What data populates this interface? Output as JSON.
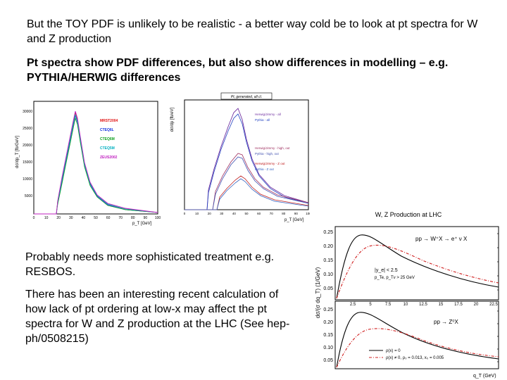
{
  "slide": {
    "para1": "But the TOY PDF is unlikely to be realistic - a better way cold be to look at pt spectra for W and Z production",
    "para2": "Pt spectra show PDF differences, but also show differences in modelling – e.g. PYTHIA/HERWIG differences",
    "box_line1": "Probably needs more sophisticated treatment e.g. RESBOS.",
    "box_line2": "There has been an interesting recent calculation of how lack of pt ordering at low-x may affect the pt spectra for W and Z production at the LHC  (See hep-ph/0508215)"
  },
  "figure1": {
    "ylabel": "dσ/dp_T [fb/GeV]",
    "xlabel": "p_T [GeV]",
    "yticks": [
      "30000",
      "25000",
      "20000",
      "15000",
      "10000",
      "5000"
    ],
    "xticks": [
      "0",
      "10",
      "20",
      "30",
      "40",
      "50",
      "60",
      "70",
      "80",
      "90",
      "100"
    ],
    "legend": [
      "MRST2004",
      "CTEQ6L",
      "CTEQ6M",
      "CTEQ5M",
      "ZEUS2002"
    ],
    "colors": [
      "#e01010",
      "#1030e0",
      "#10a020",
      "#00b0c0",
      "#c020c0"
    ]
  },
  "figure2": {
    "title": "Pt, generated, all cl.",
    "ylabel": "dσ/dp [fb/eV]",
    "xlabel": "p_T [GeV]",
    "xticks": [
      "0",
      "10",
      "20",
      "30",
      "40",
      "50",
      "60",
      "70",
      "80",
      "90",
      "100"
    ],
    "legend": [
      "Herwig/Jimmy - all",
      "Pythia - all",
      "Herwig/Jimmy - high, out",
      "Pythia - high, out",
      "Herwig/Jimmy - Z out",
      "Pythia - Z out"
    ]
  },
  "figure3": {
    "title": "W, Z Production at LHC",
    "ylabel": "dσ/(σ dq_T) (1/GeV)",
    "xlabel": "q_T (GeV)",
    "upper_yticks": [
      "0.25",
      "0.20",
      "0.15",
      "0.10",
      "0.05"
    ],
    "lower_yticks": [
      "0.25",
      "0.20",
      "0.15",
      "0.10",
      "0.05"
    ],
    "xticks": [
      "2.5",
      "5",
      "7.5",
      "10",
      "12.5",
      "15",
      "17.5",
      "20",
      "22.5"
    ],
    "upper_process": "pp → W⁺X → e⁺ ν X",
    "lower_process": "pp → Z⁰X",
    "cut_label": "|y_e| < 2.5",
    "cut_label2": "p_Te, p_Tν > 25 GeV",
    "legend_solid": "ρ(x) = 0",
    "legend_dashed": "ρ(x) ≠ 0,  ρ₀ = 0.013,  x₀ = 0.005"
  }
}
